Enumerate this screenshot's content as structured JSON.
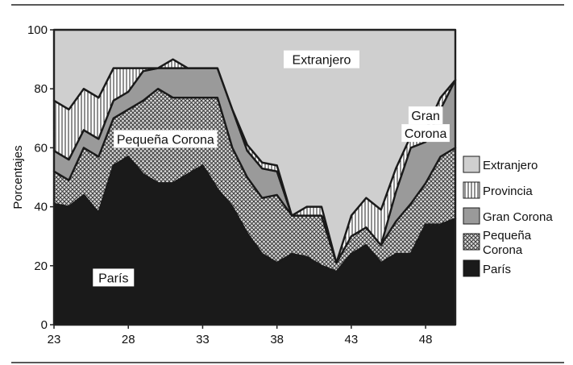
{
  "chart_data": {
    "type": "area",
    "stacked": true,
    "ylabel": "Porcentajes",
    "xlabel": "",
    "xlim": [
      23,
      50
    ],
    "ylim": [
      0,
      100
    ],
    "x_ticks": [
      23,
      28,
      33,
      38,
      43,
      48
    ],
    "y_ticks": [
      0,
      20,
      40,
      60,
      80,
      100
    ],
    "grid": false,
    "legend_position": "right",
    "x": [
      23,
      24,
      25,
      26,
      27,
      28,
      29,
      30,
      31,
      32,
      33,
      34,
      35,
      36,
      37,
      38,
      39,
      40,
      41,
      42,
      43,
      44,
      45,
      46,
      47,
      48,
      49,
      50
    ],
    "series": [
      {
        "name": "París",
        "color": "#1a1a1a",
        "pattern": "solid",
        "values": [
          41,
          40,
          44,
          38,
          54,
          57,
          51,
          48,
          48,
          51,
          54,
          46,
          40,
          31,
          24,
          21,
          24,
          23,
          20,
          18,
          24,
          27,
          21,
          24,
          24,
          34,
          34,
          36
        ]
      },
      {
        "name": "Pequeña Corona",
        "color": "#999999",
        "pattern": "crosshatch",
        "values": [
          11,
          9,
          16,
          19,
          16,
          16,
          25,
          32,
          29,
          26,
          23,
          31,
          20,
          19,
          19,
          23,
          13,
          14,
          17,
          3,
          6,
          6,
          6,
          11,
          17,
          14,
          23,
          24
        ]
      },
      {
        "name": "Gran Corona",
        "color": "#9a9a9a",
        "pattern": "solid",
        "values": [
          7,
          7,
          6,
          6,
          6,
          6,
          10,
          7,
          10,
          10,
          10,
          10,
          13,
          9,
          10,
          8,
          0,
          0,
          0,
          0,
          0,
          0,
          0,
          10,
          19,
          14,
          16,
          23
        ]
      },
      {
        "name": "Provincia",
        "color": "#ffffff",
        "pattern": "vertical-lines",
        "values": [
          17,
          17,
          14,
          14,
          11,
          8,
          1,
          0,
          3,
          0,
          0,
          0,
          0,
          2,
          2,
          2,
          0,
          3,
          3,
          0,
          7,
          10,
          12,
          8,
          4,
          4,
          4,
          0
        ]
      },
      {
        "name": "Extranjero",
        "color": "#cfcfcf",
        "pattern": "solid",
        "values": [
          24,
          27,
          20,
          23,
          13,
          13,
          13,
          13,
          10,
          13,
          13,
          13,
          27,
          39,
          45,
          46,
          63,
          60,
          60,
          79,
          63,
          57,
          61,
          47,
          36,
          34,
          23,
          17
        ]
      }
    ],
    "legend": [
      "Extranjero",
      "Provincia",
      "Gran Corona",
      "Pequeña Corona",
      "París"
    ],
    "annotations": [
      {
        "text": "Extranjero",
        "x": 41,
        "y": 90
      },
      {
        "text": "Gran",
        "x": 48,
        "y": 71
      },
      {
        "text": "Corona",
        "x": 48,
        "y": 65
      },
      {
        "text": "Pequeña Corona",
        "x": 30.5,
        "y": 63
      },
      {
        "text": "París",
        "x": 27,
        "y": 16
      }
    ]
  }
}
